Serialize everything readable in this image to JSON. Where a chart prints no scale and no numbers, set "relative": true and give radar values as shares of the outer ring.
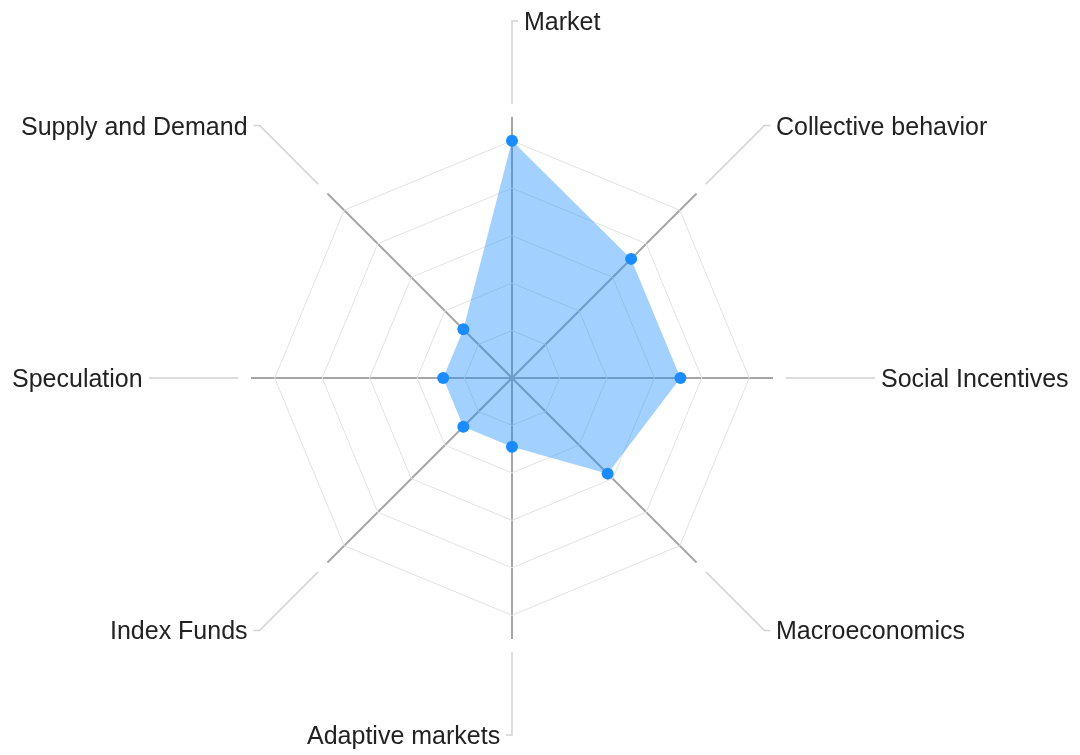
{
  "chart_data": {
    "type": "radar",
    "relative": true,
    "categories": [
      "Market",
      "Collective behavior",
      "Social Incentives",
      "Macroeconomics",
      "Adaptive markets",
      "Index Funds",
      "Speculation",
      "Supply and Demand"
    ],
    "series": [
      {
        "color": "#1a8cff",
        "values": [
          1,
          0.71,
          0.71,
          0.57,
          0.29,
          0.29,
          0.29,
          0.29
        ]
      }
    ],
    "marker": "circle",
    "grid": true
  }
}
